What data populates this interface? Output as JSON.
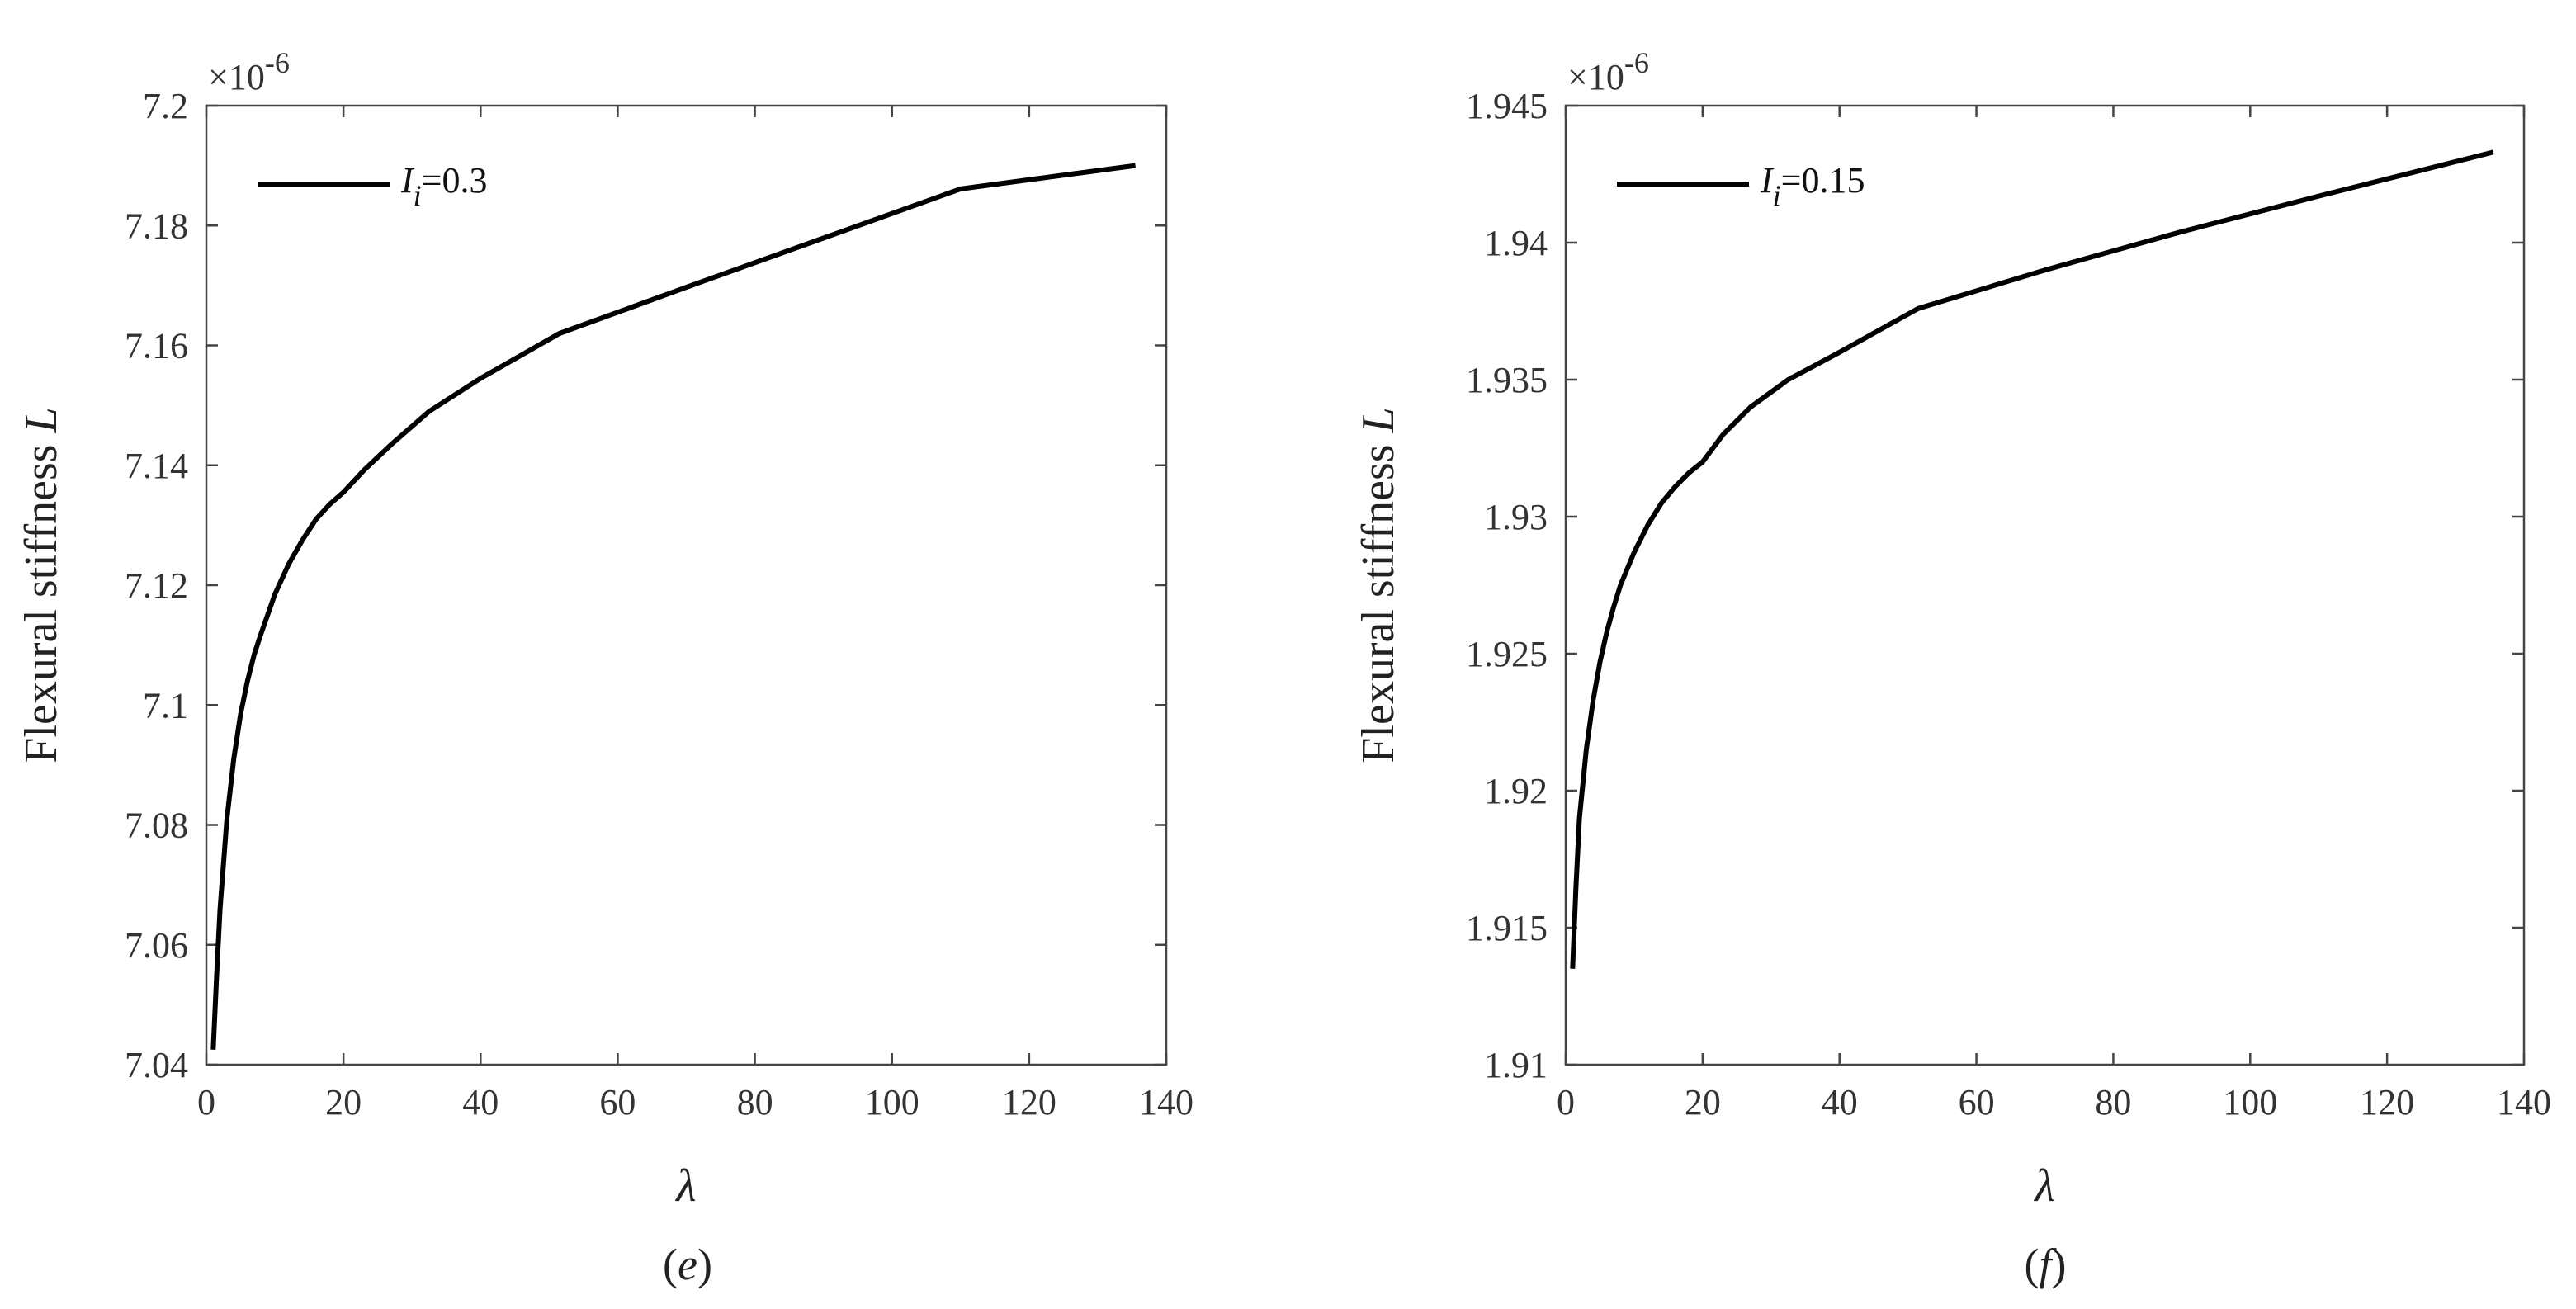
{
  "chart_data": [
    {
      "type": "line",
      "caption_open": "(",
      "caption_letter": "e",
      "caption_close": ")",
      "xlabel": "λ",
      "ylabel": "Flexural stiffness ",
      "ylabel_italic": "L",
      "multiplier_prefix": "×10",
      "multiplier_exp": "-6",
      "xlim": [
        0,
        140
      ],
      "ylim": [
        7.04,
        7.2
      ],
      "xticks": [
        0,
        20,
        40,
        60,
        80,
        100,
        120,
        140
      ],
      "xtick_labels": [
        "0",
        "20",
        "40",
        "60",
        "80",
        "100",
        "120",
        "140"
      ],
      "yticks": [
        7.04,
        7.06,
        7.08,
        7.1,
        7.12,
        7.14,
        7.16,
        7.18,
        7.2
      ],
      "ytick_labels": [
        "7.04",
        "7.06",
        "7.08",
        "7.1",
        "7.12",
        "7.14",
        "7.16",
        "7.18",
        "7.2"
      ],
      "grid": false,
      "legend_position": "top-left",
      "series": [
        {
          "legend_symbol": "I",
          "legend_subscript": "i",
          "legend_suffix": "=0.3",
          "color": "#000000",
          "x": [
            1,
            1.5,
            2,
            3,
            4,
            5,
            6,
            7,
            8,
            10,
            12,
            14,
            16,
            18,
            20,
            23,
            27,
            32.5,
            40,
            51.5,
            70,
            90,
            110,
            135.5
          ],
          "y": [
            7.0425,
            7.055,
            7.066,
            7.081,
            7.091,
            7.0985,
            7.104,
            7.1085,
            7.112,
            7.1185,
            7.1235,
            7.1275,
            7.131,
            7.1335,
            7.1355,
            7.1392,
            7.1435,
            7.149,
            7.1545,
            7.162,
            7.1697,
            7.1779,
            7.1861,
            7.19
          ]
        }
      ]
    },
    {
      "type": "line",
      "caption_open": "(",
      "caption_letter": "f",
      "caption_close": ")",
      "xlabel": "λ",
      "ylabel": "Flexural stiffness ",
      "ylabel_italic": "L",
      "multiplier_prefix": "×10",
      "multiplier_exp": "-6",
      "xlim": [
        0,
        140
      ],
      "ylim": [
        1.91,
        1.945
      ],
      "xticks": [
        0,
        20,
        40,
        60,
        80,
        100,
        120,
        140
      ],
      "xtick_labels": [
        "0",
        "20",
        "40",
        "60",
        "80",
        "100",
        "120",
        "140"
      ],
      "yticks": [
        1.91,
        1.915,
        1.92,
        1.925,
        1.93,
        1.935,
        1.94,
        1.945
      ],
      "ytick_labels": [
        "1.91",
        "1.915",
        "1.92",
        "1.925",
        "1.93",
        "1.935",
        "1.94",
        "1.945"
      ],
      "grid": false,
      "legend_position": "top-left",
      "series": [
        {
          "legend_symbol": "I",
          "legend_subscript": "i",
          "legend_suffix": "=0.15",
          "color": "#000000",
          "x": [
            1,
            1.5,
            2,
            3,
            4,
            5,
            6,
            7,
            8,
            10,
            12,
            14,
            16,
            18,
            20,
            23,
            27,
            32.5,
            40,
            51.5,
            70,
            90,
            110,
            135.5
          ],
          "y": [
            1.9135,
            1.9165,
            1.919,
            1.9215,
            1.9233,
            1.9247,
            1.9258,
            1.9267,
            1.9275,
            1.9287,
            1.9297,
            1.9305,
            1.9311,
            1.9316,
            1.932,
            1.933,
            1.934,
            1.935,
            1.936,
            1.9376,
            1.939,
            1.9404,
            1.9417,
            1.9433
          ]
        }
      ]
    }
  ]
}
